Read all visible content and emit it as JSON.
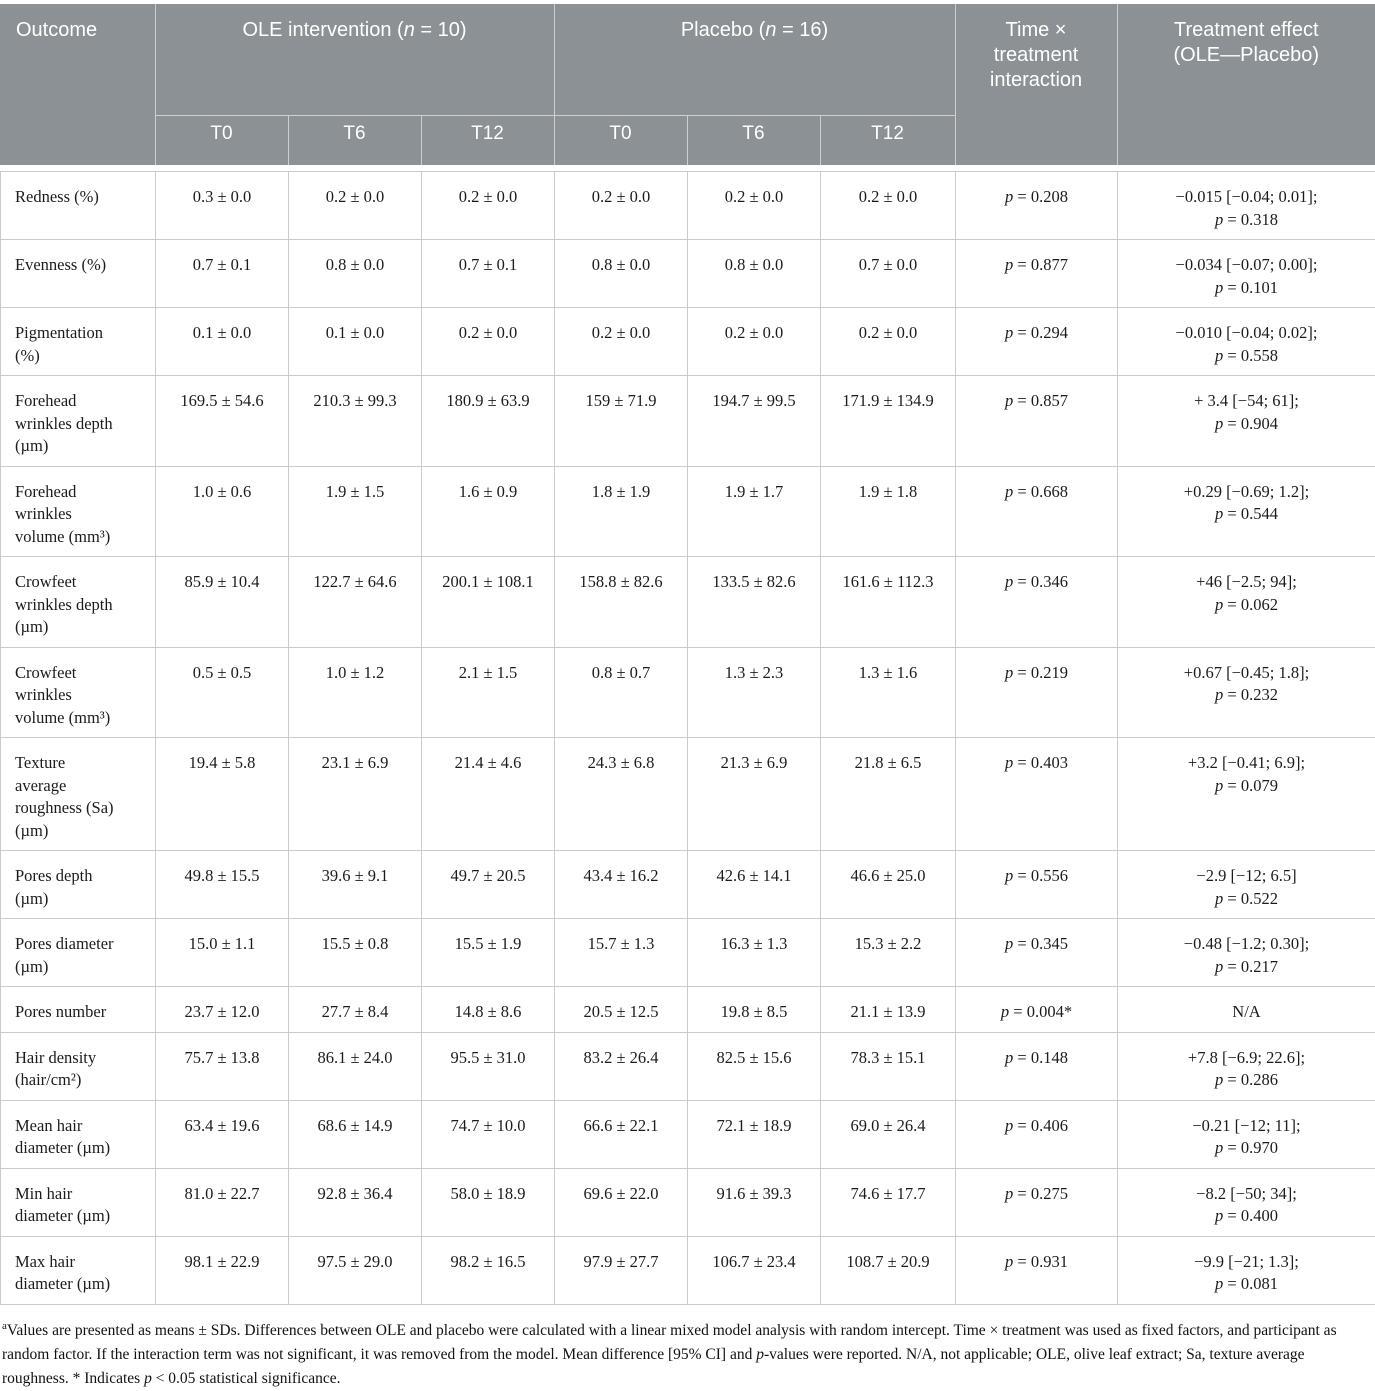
{
  "table": {
    "header": {
      "outcome": "Outcome",
      "ole_group": {
        "pre": "OLE intervention (",
        "nvar": "n",
        "post": " = 10)"
      },
      "placebo_group": {
        "pre": "Placebo (",
        "nvar": "n",
        "post": " = 16)"
      },
      "interaction": "Time ×\ntreatment\ninteraction",
      "effect": "Treatment effect\n(OLE—Placebo)"
    },
    "subheaders": [
      "T0",
      "T6",
      "T12",
      "T0",
      "T6",
      "T12"
    ],
    "rows": [
      {
        "outcome": "Redness (%)",
        "ole": [
          "0.3 ± 0.0",
          "0.2 ± 0.0",
          "0.2 ± 0.0"
        ],
        "placebo": [
          "0.2 ± 0.0",
          "0.2 ± 0.0",
          "0.2 ± 0.0"
        ],
        "interaction": "p = 0.208",
        "effect_lines": [
          "−0.015 [−0.04; 0.01];",
          "p = 0.318"
        ]
      },
      {
        "outcome": "Evenness (%)",
        "ole": [
          "0.7 ± 0.1",
          "0.8 ± 0.0",
          "0.7 ± 0.1"
        ],
        "placebo": [
          "0.8 ± 0.0",
          "0.8 ± 0.0",
          "0.7 ± 0.0"
        ],
        "interaction": "p = 0.877",
        "effect_lines": [
          "−0.034 [−0.07; 0.00];",
          "p = 0.101"
        ]
      },
      {
        "outcome": "Pigmentation\n(%)",
        "ole": [
          "0.1 ± 0.0",
          "0.1 ± 0.0",
          "0.2 ± 0.0"
        ],
        "placebo": [
          "0.2 ± 0.0",
          "0.2 ± 0.0",
          "0.2 ± 0.0"
        ],
        "interaction": "p = 0.294",
        "effect_lines": [
          "−0.010 [−0.04; 0.02];",
          "p = 0.558"
        ]
      },
      {
        "outcome": "Forehead\nwrinkles depth\n(µm)",
        "ole": [
          "169.5 ± 54.6",
          "210.3 ± 99.3",
          "180.9 ± 63.9"
        ],
        "placebo": [
          "159 ± 71.9",
          "194.7 ± 99.5",
          "171.9 ± 134.9"
        ],
        "interaction": "p = 0.857",
        "effect_lines": [
          "+ 3.4 [−54; 61];",
          "p = 0.904"
        ]
      },
      {
        "outcome": "Forehead\nwrinkles\nvolume (mm³)",
        "ole": [
          "1.0 ± 0.6",
          "1.9 ± 1.5",
          "1.6 ± 0.9"
        ],
        "placebo": [
          "1.8 ± 1.9",
          "1.9 ± 1.7",
          "1.9 ± 1.8"
        ],
        "interaction": "p = 0.668",
        "effect_lines": [
          "+0.29 [−0.69; 1.2];",
          "p = 0.544"
        ]
      },
      {
        "outcome": "Crowfeet\nwrinkles depth\n(µm)",
        "ole": [
          "85.9 ± 10.4",
          "122.7 ± 64.6",
          "200.1 ± 108.1"
        ],
        "placebo": [
          "158.8 ± 82.6",
          "133.5 ± 82.6",
          "161.6 ± 112.3"
        ],
        "interaction": "p = 0.346",
        "effect_lines": [
          "+46 [−2.5; 94];",
          "p = 0.062"
        ]
      },
      {
        "outcome": "Crowfeet\nwrinkles\nvolume (mm³)",
        "ole": [
          "0.5 ± 0.5",
          "1.0 ± 1.2",
          "2.1 ± 1.5"
        ],
        "placebo": [
          "0.8 ± 0.7",
          "1.3 ± 2.3",
          "1.3 ± 1.6"
        ],
        "interaction": "p = 0.219",
        "effect_lines": [
          "+0.67 [−0.45; 1.8];",
          "p = 0.232"
        ]
      },
      {
        "outcome": "Texture\naverage\nroughness (Sa)\n(µm)",
        "ole": [
          "19.4 ± 5.8",
          "23.1 ± 6.9",
          "21.4 ± 4.6"
        ],
        "placebo": [
          "24.3 ± 6.8",
          "21.3 ± 6.9",
          "21.8 ± 6.5"
        ],
        "interaction": "p = 0.403",
        "effect_lines": [
          "+3.2 [−0.41; 6.9];",
          "p = 0.079"
        ]
      },
      {
        "outcome": "Pores depth\n(µm)",
        "ole": [
          "49.8 ± 15.5",
          "39.6 ± 9.1",
          "49.7 ± 20.5"
        ],
        "placebo": [
          "43.4 ± 16.2",
          "42.6 ± 14.1",
          "46.6 ± 25.0"
        ],
        "interaction": "p = 0.556",
        "effect_lines": [
          "−2.9 [−12; 6.5]",
          "p = 0.522"
        ]
      },
      {
        "outcome": "Pores diameter\n(µm)",
        "ole": [
          "15.0 ± 1.1",
          "15.5 ± 0.8",
          "15.5 ± 1.9"
        ],
        "placebo": [
          "15.7 ± 1.3",
          "16.3 ± 1.3",
          "15.3 ± 2.2"
        ],
        "interaction": "p = 0.345",
        "effect_lines": [
          "−0.48 [−1.2; 0.30];",
          "p = 0.217"
        ]
      },
      {
        "outcome": "Pores number",
        "ole": [
          "23.7 ± 12.0",
          "27.7 ± 8.4",
          "14.8 ± 8.6"
        ],
        "placebo": [
          "20.5 ± 12.5",
          "19.8 ± 8.5",
          "21.1 ± 13.9"
        ],
        "interaction": "p = 0.004*",
        "effect_lines": [
          "N/A"
        ]
      },
      {
        "outcome": "Hair density\n(hair/cm²)",
        "ole": [
          "75.7 ± 13.8",
          "86.1 ± 24.0",
          "95.5 ± 31.0"
        ],
        "placebo": [
          "83.2 ± 26.4",
          "82.5 ± 15.6",
          "78.3 ± 15.1"
        ],
        "interaction": "p = 0.148",
        "effect_lines": [
          "+7.8 [−6.9; 22.6];",
          "p = 0.286"
        ]
      },
      {
        "outcome": "Mean hair\ndiameter (µm)",
        "ole": [
          "63.4 ± 19.6",
          "68.6 ± 14.9",
          "74.7 ± 10.0"
        ],
        "placebo": [
          "66.6 ± 22.1",
          "72.1 ± 18.9",
          "69.0 ± 26.4"
        ],
        "interaction": "p = 0.406",
        "effect_lines": [
          "−0.21 [−12; 11];",
          "p = 0.970"
        ]
      },
      {
        "outcome": "Min hair\ndiameter (µm)",
        "ole": [
          "81.0 ± 22.7",
          "92.8 ± 36.4",
          "58.0 ± 18.9"
        ],
        "placebo": [
          "69.6 ± 22.0",
          "91.6 ± 39.3",
          "74.6 ± 17.7"
        ],
        "interaction": "p = 0.275",
        "effect_lines": [
          "−8.2 [−50; 34];",
          "p = 0.400"
        ]
      },
      {
        "outcome": "Max hair\ndiameter (µm)",
        "ole": [
          "98.1 ± 22.9",
          "97.5 ± 29.0",
          "98.2 ± 16.5"
        ],
        "placebo": [
          "97.9 ± 27.7",
          "106.7 ± 23.4",
          "108.7 ± 20.9"
        ],
        "interaction": "p = 0.931",
        "effect_lines": [
          "−9.9 [−21; 1.3];",
          "p = 0.081"
        ]
      }
    ]
  },
  "footnote": {
    "sup": "a",
    "s1": "Values are presented as means ± SDs. Differences between OLE and placebo were calculated with a linear mixed model analysis with random intercept. Time × treatment was used as fixed factors, and participant as random factor. If the interaction term was not significant, it was removed from the model. Mean difference [95% CI] and ",
    "p1": "p",
    "s2": "-values were reported. N/A, not applicable; OLE, olive leaf extract; Sa, texture average roughness. * Indicates ",
    "p2": "p",
    "s3": " < 0.05 statistical significance."
  },
  "colors": {
    "header_bg": "#8b9194",
    "header_text": "#ffffff",
    "header_divider": "#ccd0d1",
    "body_border": "#cbcbcb",
    "body_text": "#1b1b1b"
  }
}
